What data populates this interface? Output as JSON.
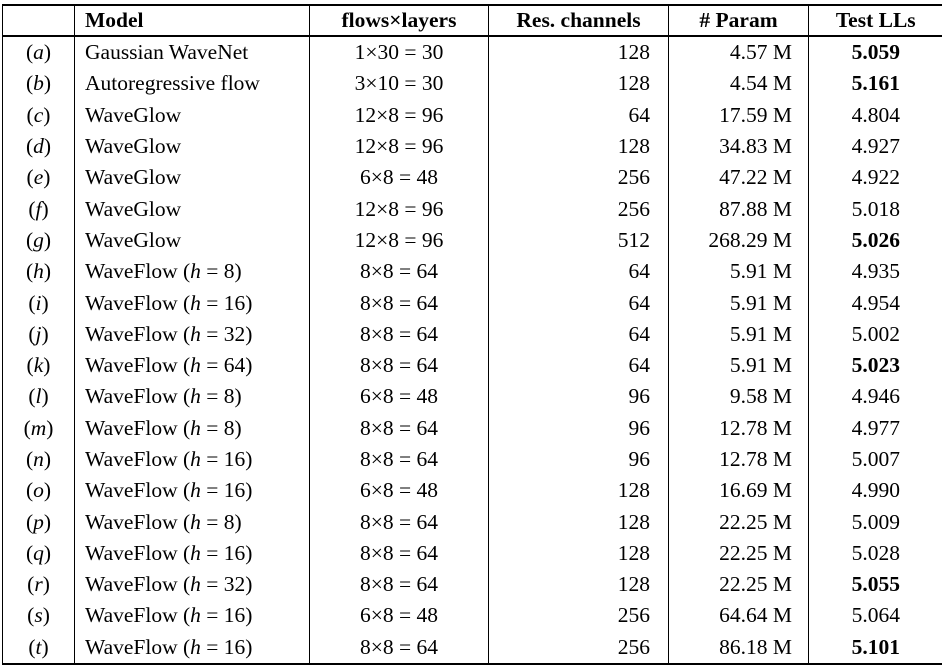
{
  "table": {
    "headers": {
      "label": "",
      "model": "Model",
      "flows_layers": "flows×layers",
      "res_channels": "Res. channels",
      "param": "# Param",
      "test_lls": "Test LLs"
    },
    "rows": [
      {
        "label": "(a)",
        "model": "Gaussian WaveNet",
        "flows_layers": "1×30 = 30",
        "res_channels": "128",
        "param": "4.57 M",
        "test_lls": "5.059",
        "test_lls_bold": true
      },
      {
        "label": "(b)",
        "model": "Autoregressive flow",
        "flows_layers": "3×10 = 30",
        "res_channels": "128",
        "param": "4.54 M",
        "test_lls": "5.161",
        "test_lls_bold": true
      },
      {
        "label": "(c)",
        "model": "WaveGlow",
        "flows_layers": "12×8 = 96",
        "res_channels": "64",
        "param": "17.59 M",
        "test_lls": "4.804",
        "test_lls_bold": false
      },
      {
        "label": "(d)",
        "model": "WaveGlow",
        "flows_layers": "12×8 = 96",
        "res_channels": "128",
        "param": "34.83 M",
        "test_lls": "4.927",
        "test_lls_bold": false
      },
      {
        "label": "(e)",
        "model": "WaveGlow",
        "flows_layers": "6×8 = 48",
        "res_channels": "256",
        "param": "47.22 M",
        "test_lls": "4.922",
        "test_lls_bold": false
      },
      {
        "label": "(f)",
        "model": "WaveGlow",
        "flows_layers": "12×8 = 96",
        "res_channels": "256",
        "param": "87.88 M",
        "test_lls": "5.018",
        "test_lls_bold": false
      },
      {
        "label": "(g)",
        "model": "WaveGlow",
        "flows_layers": "12×8 = 96",
        "res_channels": "512",
        "param": "268.29 M",
        "test_lls": "5.026",
        "test_lls_bold": true
      },
      {
        "label": "(h)",
        "model": "WaveFlow (h = 8)",
        "flows_layers": "8×8 = 64",
        "res_channels": "64",
        "param": "5.91 M",
        "test_lls": "4.935",
        "test_lls_bold": false
      },
      {
        "label": "(i)",
        "model": "WaveFlow (h = 16)",
        "flows_layers": "8×8 = 64",
        "res_channels": "64",
        "param": "5.91 M",
        "test_lls": "4.954",
        "test_lls_bold": false
      },
      {
        "label": "(j)",
        "model": "WaveFlow (h = 32)",
        "flows_layers": "8×8 = 64",
        "res_channels": "64",
        "param": "5.91 M",
        "test_lls": "5.002",
        "test_lls_bold": false
      },
      {
        "label": "(k)",
        "model": "WaveFlow (h = 64)",
        "flows_layers": "8×8 = 64",
        "res_channels": "64",
        "param": "5.91 M",
        "test_lls": "5.023",
        "test_lls_bold": true
      },
      {
        "label": "(l)",
        "model": "WaveFlow (h = 8)",
        "flows_layers": "6×8 = 48",
        "res_channels": "96",
        "param": "9.58 M",
        "test_lls": "4.946",
        "test_lls_bold": false
      },
      {
        "label": "(m)",
        "model": "WaveFlow (h = 8)",
        "flows_layers": "8×8 = 64",
        "res_channels": "96",
        "param": "12.78 M",
        "test_lls": "4.977",
        "test_lls_bold": false
      },
      {
        "label": "(n)",
        "model": "WaveFlow (h = 16)",
        "flows_layers": "8×8 = 64",
        "res_channels": "96",
        "param": "12.78 M",
        "test_lls": "5.007",
        "test_lls_bold": false
      },
      {
        "label": "(o)",
        "model": "WaveFlow (h = 16)",
        "flows_layers": "6×8 = 48",
        "res_channels": "128",
        "param": "16.69 M",
        "test_lls": "4.990",
        "test_lls_bold": false
      },
      {
        "label": "(p)",
        "model": "WaveFlow (h = 8)",
        "flows_layers": "8×8 = 64",
        "res_channels": "128",
        "param": "22.25 M",
        "test_lls": "5.009",
        "test_lls_bold": false
      },
      {
        "label": "(q)",
        "model": "WaveFlow (h = 16)",
        "flows_layers": "8×8 = 64",
        "res_channels": "128",
        "param": "22.25 M",
        "test_lls": "5.028",
        "test_lls_bold": false
      },
      {
        "label": "(r)",
        "model": "WaveFlow (h = 32)",
        "flows_layers": "8×8 = 64",
        "res_channels": "128",
        "param": "22.25 M",
        "test_lls": "5.055",
        "test_lls_bold": true
      },
      {
        "label": "(s)",
        "model": "WaveFlow (h = 16)",
        "flows_layers": "6×8 = 48",
        "res_channels": "256",
        "param": "64.64 M",
        "test_lls": "5.064",
        "test_lls_bold": false
      },
      {
        "label": "(t)",
        "model": "WaveFlow (h = 16)",
        "flows_layers": "8×8 = 64",
        "res_channels": "256",
        "param": "86.18 M",
        "test_lls": "5.101",
        "test_lls_bold": true
      }
    ]
  }
}
